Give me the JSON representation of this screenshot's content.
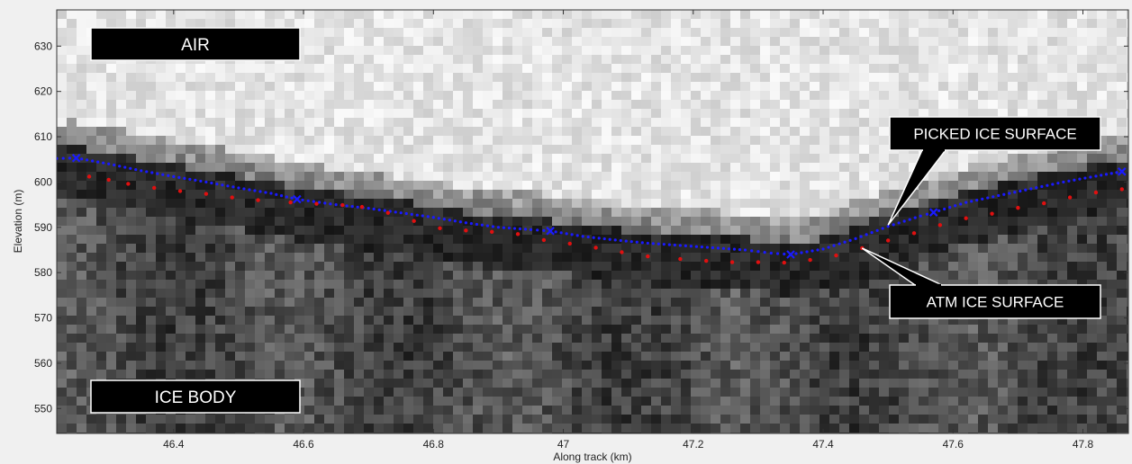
{
  "chart_data": {
    "type": "scatter",
    "xlabel": "Along track (km)",
    "ylabel": "Elevation (m)",
    "xlim": [
      46.22,
      47.87
    ],
    "ylim": [
      544.5,
      638
    ],
    "xticks": [
      46.4,
      46.6,
      46.8,
      47,
      47.2,
      47.4,
      47.6,
      47.8
    ],
    "xtick_labels": [
      "46.4",
      "46.6",
      "46.8",
      "47",
      "47.2",
      "47.4",
      "47.6",
      "47.8"
    ],
    "yticks": [
      550,
      560,
      570,
      580,
      590,
      600,
      610,
      620,
      630
    ],
    "ytick_labels": [
      "550",
      "560",
      "570",
      "580",
      "590",
      "600",
      "610",
      "620",
      "630"
    ],
    "grid": false,
    "background": "grayscale radar echogram",
    "series": [
      {
        "color": "#1a1aff",
        "marker": "dots",
        "x": [
          46.22,
          46.25,
          46.3,
          46.35,
          46.4,
          46.45,
          46.5,
          46.55,
          46.59,
          46.65,
          46.7,
          46.75,
          46.8,
          46.85,
          46.9,
          46.95,
          46.98,
          47.03,
          47.08,
          47.13,
          47.18,
          47.23,
          47.28,
          47.32,
          47.35,
          47.4,
          47.45,
          47.5,
          47.55,
          47.57,
          47.62,
          47.67,
          47.72,
          47.77,
          47.82,
          47.86
        ],
        "y": [
          605.2,
          605.3,
          604,
          602.5,
          601.2,
          600,
          598.7,
          597.5,
          596.2,
          595,
          594.2,
          593.2,
          592.2,
          591,
          590,
          589.5,
          589.2,
          588,
          587.2,
          586.5,
          586,
          585.5,
          585,
          584.3,
          584,
          585.2,
          587.5,
          590.2,
          592.5,
          593.3,
          595.5,
          597,
          598.5,
          600,
          601.3,
          602.3
        ]
      },
      {
        "color": "#1a1aff",
        "marker": "x",
        "x": [
          46.25,
          46.59,
          46.98,
          47.35,
          47.57,
          47.86
        ],
        "y": [
          605.3,
          596.2,
          589.2,
          584,
          593.3,
          602.3
        ]
      },
      {
        "color": "#e01010",
        "marker": "dots",
        "x": [
          46.27,
          46.3,
          46.33,
          46.37,
          46.41,
          46.45,
          46.49,
          46.53,
          46.58,
          46.62,
          46.66,
          46.69,
          46.73,
          46.77,
          46.81,
          46.85,
          46.89,
          46.93,
          46.97,
          47.01,
          47.05,
          47.09,
          47.13,
          47.18,
          47.22,
          47.26,
          47.3,
          47.34,
          47.38,
          47.42,
          47.46,
          47.5,
          47.54,
          47.58,
          47.62,
          47.66,
          47.7,
          47.74,
          47.78,
          47.82,
          47.86
        ],
        "y": [
          601.2,
          600.5,
          599.6,
          598.7,
          598,
          597.4,
          596.6,
          596,
          595.5,
          595.2,
          594.9,
          594.5,
          593.2,
          591.4,
          589.8,
          589.3,
          589,
          588.5,
          587.2,
          586.4,
          585.5,
          584.5,
          583.6,
          583,
          582.6,
          582.3,
          582.3,
          582.2,
          582.8,
          583.8,
          585.4,
          587.1,
          588.7,
          590.5,
          592,
          593,
          594.3,
          595.3,
          596.6,
          597.7,
          598.4
        ]
      }
    ],
    "annotations": [
      {
        "text": "AIR",
        "anchor": "top-left"
      },
      {
        "text": "ICE BODY",
        "anchor": "bottom-left"
      },
      {
        "text": "PICKED ICE SURFACE",
        "anchor": "right",
        "pointer_x": 47.5,
        "pointer_y": 590.5
      },
      {
        "text": "ATM ICE SURFACE",
        "anchor": "right",
        "pointer_x": 47.46,
        "pointer_y": 585.4
      }
    ]
  }
}
